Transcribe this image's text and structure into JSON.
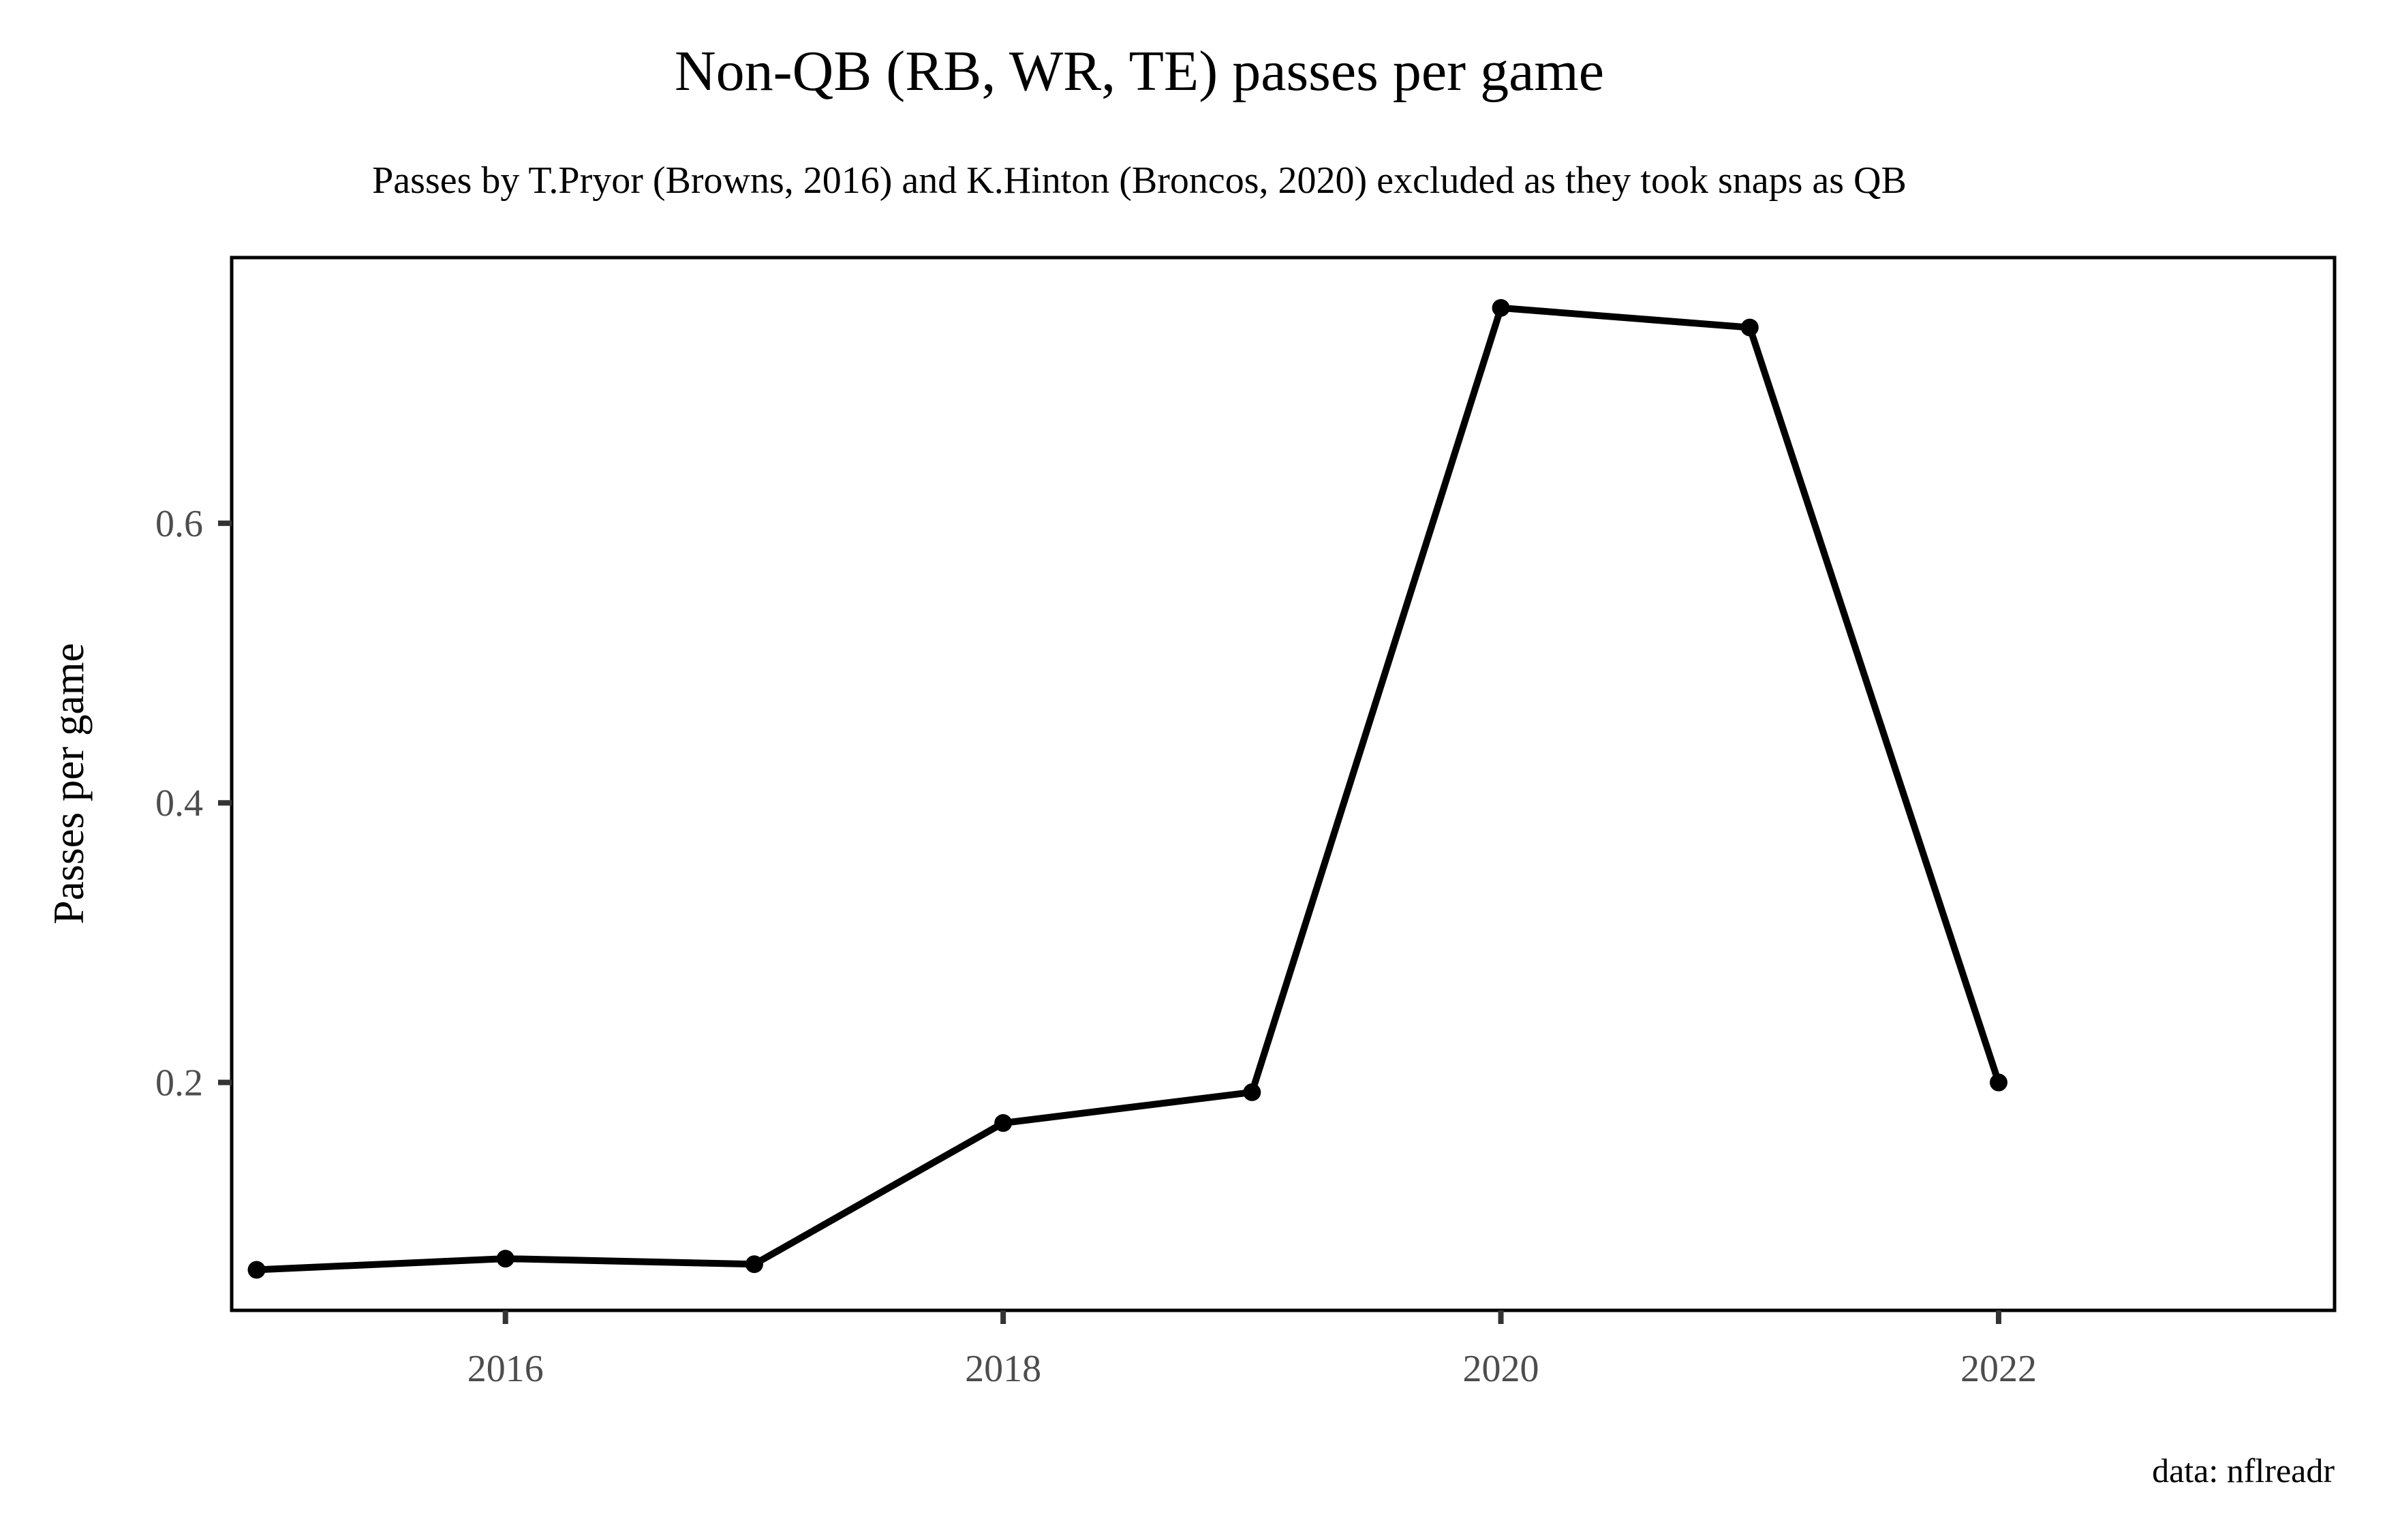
{
  "chart_data": {
    "type": "line",
    "title": "Non-QB (RB, WR, TE) passes per game",
    "subtitle": "Passes by T.Pryor (Browns, 2016) and K.Hinton (Broncos, 2020) excluded as they took snaps as QB",
    "caption": "data: nflreadr",
    "xlabel": "",
    "ylabel": "Passes per game",
    "x": [
      2015,
      2016,
      2017,
      2018,
      2019,
      2020,
      2021,
      2022
    ],
    "series": [
      {
        "values": [
          0.066,
          0.074,
          0.07,
          0.171,
          0.193,
          0.754,
          0.74,
          0.2
        ]
      }
    ],
    "xlim": [
      2014.9,
      2023.35
    ],
    "ylim": [
      0.037,
      0.79
    ],
    "xticks": [
      2016,
      2018,
      2020,
      2022
    ],
    "xtick_labels": [
      "2016",
      "2018",
      "2020",
      "2022"
    ],
    "yticks": [
      0.2,
      0.4,
      0.6
    ],
    "ytick_labels": [
      "0.2",
      "0.4",
      "0.6"
    ],
    "grid": false,
    "legend": "none",
    "colors": {
      "line": "#000000",
      "panel_border": "#000000",
      "tick_label": "#4d4d4d",
      "tick_mark": "#333333"
    }
  }
}
